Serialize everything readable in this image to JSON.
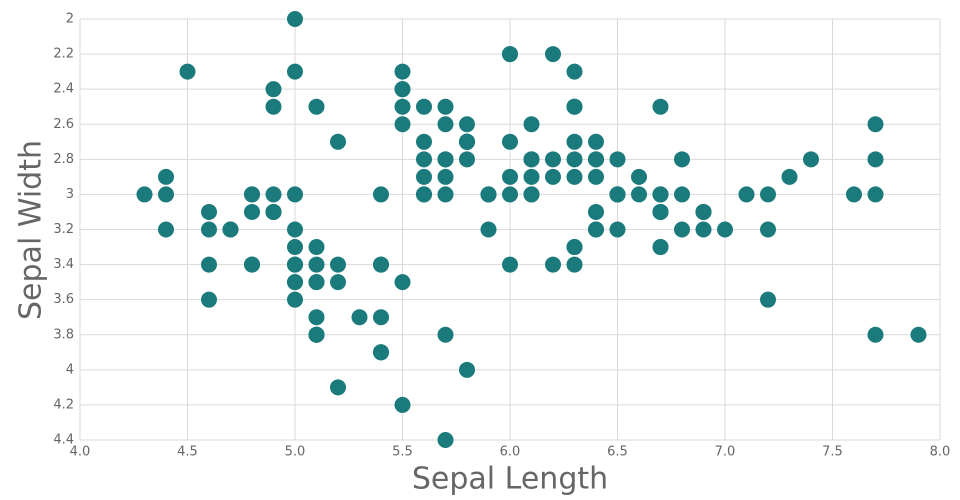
{
  "chart_data": {
    "type": "scatter",
    "color": "#1b7a7c",
    "grid": true,
    "x_label": "Sepal Length",
    "y_label": "Sepal Width",
    "xlim": [
      4,
      8
    ],
    "ylim": [
      4.4,
      2
    ],
    "xticks": [
      {
        "value": 4,
        "label": "4.0"
      },
      {
        "value": 4.5,
        "label": "4.5"
      },
      {
        "value": 5,
        "label": "5.0"
      },
      {
        "value": 5.5,
        "label": "5.5"
      },
      {
        "value": 6,
        "label": "6.0"
      },
      {
        "value": 6.5,
        "label": "6.5"
      },
      {
        "value": 7,
        "label": "7.0"
      },
      {
        "value": 7.5,
        "label": "7.5"
      },
      {
        "value": 8,
        "label": "8.0"
      }
    ],
    "yticks": [
      2,
      2.2,
      2.4,
      2.6,
      2.8,
      3,
      3.2,
      3.4,
      3.6,
      3.8,
      4,
      4.2,
      4.4
    ],
    "x": [
      5.1,
      4.9,
      4.7,
      4.6,
      5.0,
      5.4,
      4.6,
      5.0,
      4.4,
      4.9,
      5.4,
      4.8,
      4.8,
      4.3,
      5.8,
      5.7,
      5.4,
      5.1,
      5.7,
      5.1,
      5.4,
      5.1,
      4.6,
      5.1,
      4.8,
      5.0,
      5.0,
      5.2,
      5.2,
      4.7,
      4.8,
      5.4,
      5.2,
      5.5,
      4.9,
      5.0,
      5.5,
      4.9,
      4.4,
      5.1,
      5.0,
      4.5,
      4.4,
      5.0,
      5.1,
      4.8,
      5.1,
      4.6,
      5.3,
      5.0,
      7.0,
      6.4,
      6.9,
      5.5,
      6.5,
      5.7,
      6.3,
      4.9,
      6.6,
      5.2,
      5.0,
      5.9,
      6.0,
      6.1,
      5.6,
      6.7,
      5.6,
      5.8,
      6.2,
      5.6,
      5.9,
      6.1,
      6.3,
      6.1,
      6.4,
      6.6,
      6.8,
      6.7,
      6.0,
      5.7,
      5.5,
      5.5,
      5.8,
      6.0,
      5.4,
      6.0,
      6.7,
      6.3,
      5.6,
      5.5,
      5.5,
      6.1,
      5.8,
      5.0,
      5.6,
      5.7,
      5.7,
      6.2,
      5.1,
      5.7,
      6.3,
      5.8,
      7.1,
      6.3,
      6.5,
      7.6,
      4.9,
      7.3,
      6.7,
      7.2,
      6.5,
      6.4,
      6.8,
      5.7,
      5.8,
      6.4,
      6.5,
      7.7,
      7.7,
      6.0,
      6.9,
      5.6,
      7.7,
      6.3,
      6.7,
      7.2,
      6.2,
      6.1,
      6.4,
      7.2,
      7.4,
      7.9,
      6.4,
      6.3,
      6.1,
      7.7,
      6.3,
      6.4,
      6.0,
      6.9,
      6.7,
      6.9,
      5.8,
      6.8,
      6.7,
      6.7,
      6.3,
      6.5,
      6.2,
      5.9
    ],
    "values": [
      3.5,
      3.0,
      3.2,
      3.1,
      3.6,
      3.9,
      3.4,
      3.4,
      2.9,
      3.1,
      3.7,
      3.4,
      3.0,
      3.0,
      4.0,
      4.4,
      3.9,
      3.5,
      3.8,
      3.8,
      3.4,
      3.7,
      3.6,
      3.3,
      3.4,
      3.0,
      3.4,
      3.5,
      3.4,
      3.2,
      3.1,
      3.4,
      4.1,
      4.2,
      3.1,
      3.2,
      3.5,
      3.1,
      3.0,
      3.4,
      3.5,
      2.3,
      3.2,
      3.5,
      3.8,
      3.0,
      3.8,
      3.2,
      3.7,
      3.3,
      3.2,
      3.2,
      3.1,
      2.3,
      2.8,
      2.8,
      3.3,
      2.4,
      2.9,
      2.7,
      2.0,
      3.0,
      2.2,
      2.9,
      2.9,
      3.1,
      3.0,
      2.7,
      2.2,
      2.5,
      3.2,
      2.8,
      2.5,
      2.8,
      2.9,
      3.0,
      2.8,
      3.0,
      2.9,
      2.6,
      2.4,
      2.4,
      2.7,
      2.7,
      3.0,
      3.4,
      3.1,
      2.3,
      3.0,
      2.5,
      2.6,
      3.0,
      2.6,
      2.3,
      2.7,
      3.0,
      2.9,
      2.9,
      2.5,
      2.8,
      3.3,
      2.7,
      3.0,
      2.9,
      3.0,
      3.0,
      2.5,
      2.9,
      2.5,
      3.6,
      3.2,
      2.7,
      3.0,
      2.5,
      2.8,
      3.2,
      3.0,
      3.8,
      2.6,
      2.2,
      3.2,
      2.8,
      2.8,
      2.7,
      3.3,
      3.2,
      2.8,
      3.0,
      2.8,
      3.0,
      2.8,
      3.8,
      2.8,
      2.8,
      2.6,
      3.0,
      3.4,
      3.1,
      3.0,
      3.1,
      3.1,
      3.1,
      2.7,
      3.2,
      3.3,
      3.0,
      2.5,
      3.0,
      3.4,
      3.0
    ]
  }
}
